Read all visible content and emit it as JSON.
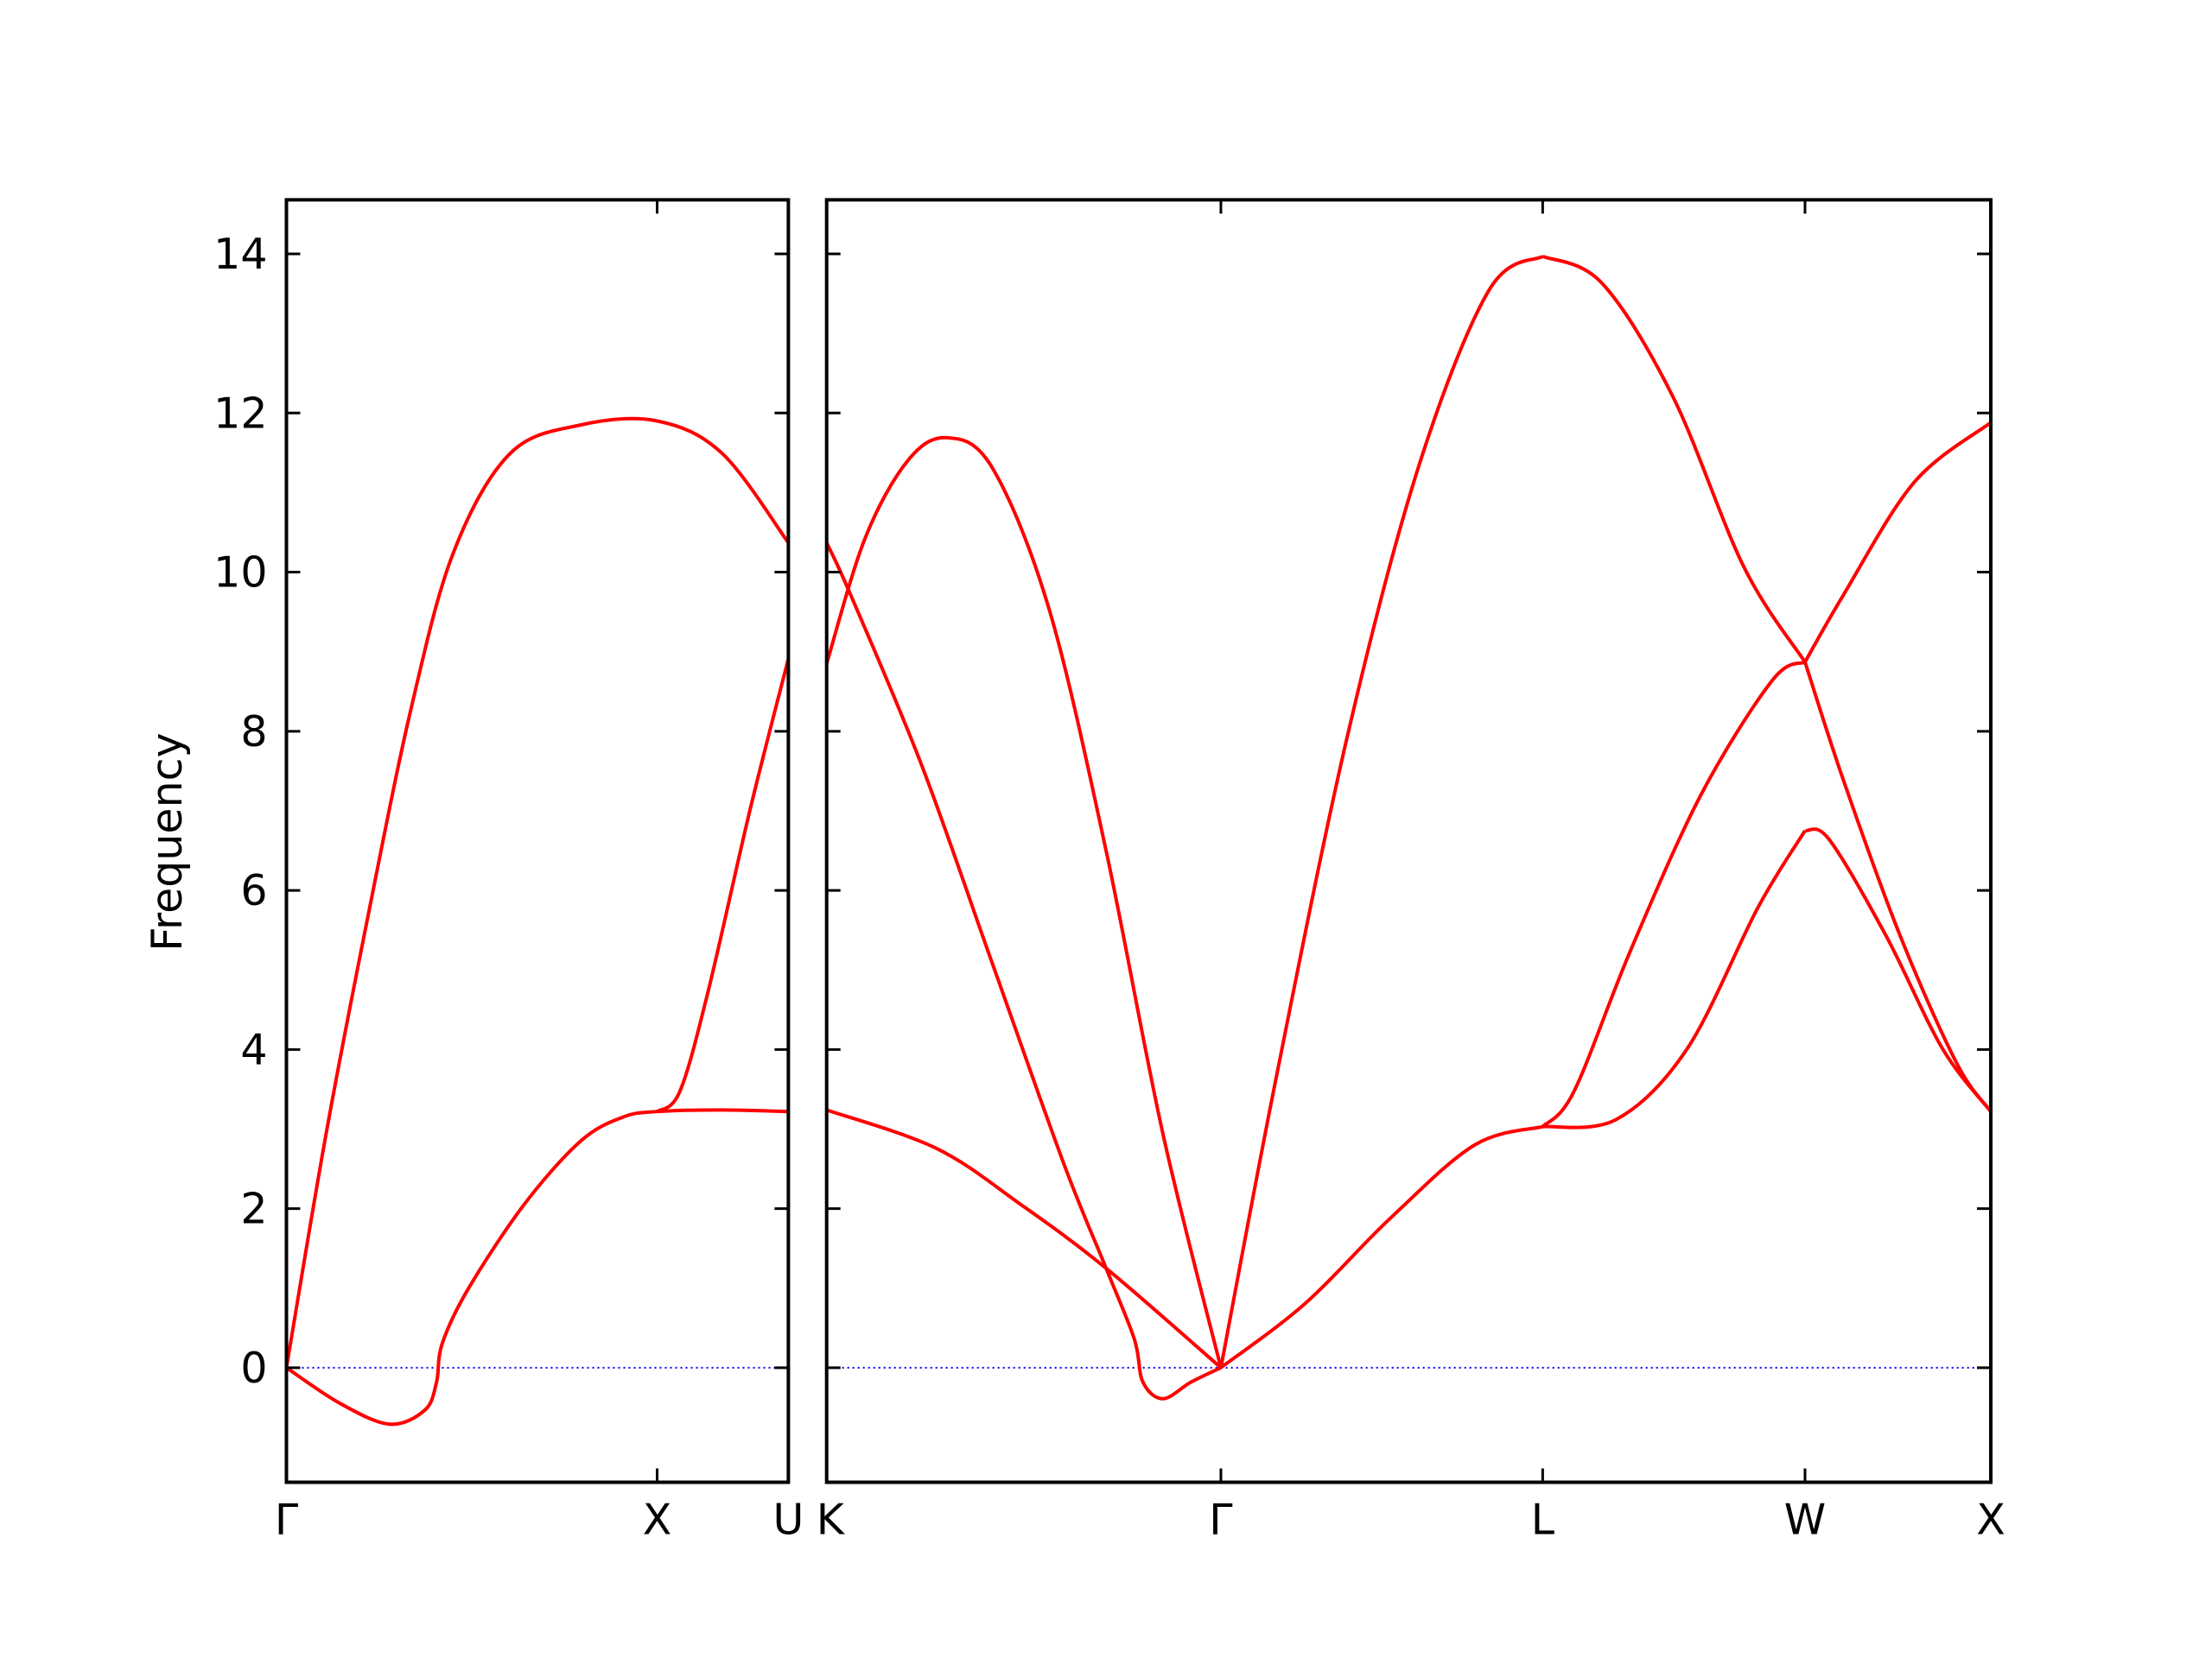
{
  "chart_data": [
    {
      "type": "line",
      "ylabel": "Frequency",
      "xlim": [
        0,
        1.354
      ],
      "ylim": [
        -1.44,
        14.68
      ],
      "xticks": [
        {
          "value": 0,
          "label": "Γ"
        },
        {
          "value": 1,
          "label": "X"
        },
        {
          "value": 1.354,
          "label": "U"
        }
      ],
      "yticks": [
        0,
        2,
        4,
        6,
        8,
        10,
        12,
        14
      ],
      "reference_line": {
        "y": 0,
        "color": "#0000ff"
      },
      "series": [
        {
          "color": "#ff0000",
          "x": [
            0,
            0.145,
            0.279,
            0.374,
            0.405,
            0.42,
            0.489,
            0.641,
            0.794,
            0.908,
            1,
            1.176,
            1.354
          ],
          "values": [
            0,
            -0.45,
            -0.71,
            -0.53,
            -0.18,
            0.3,
            0.98,
            2.05,
            2.85,
            3.15,
            3.22,
            3.24,
            3.22
          ]
        },
        {
          "color": "#ff0000",
          "x": [
            0,
            0.107,
            0.221,
            0.336,
            0.45,
            0.603,
            0.794,
            1,
            1.176,
            1.354
          ],
          "values": [
            0,
            2.94,
            5.7,
            8.28,
            10.24,
            11.49,
            11.85,
            11.9,
            11.49,
            10.37
          ]
        },
        {
          "color": "#ff0000",
          "x": [
            1,
            1.061,
            1.137,
            1.252,
            1.354
          ],
          "values": [
            3.22,
            3.47,
            4.72,
            7.04,
            8.91
          ]
        }
      ]
    },
    {
      "type": "line",
      "xlim": [
        1.354,
        4.487
      ],
      "ylim": [
        -1.44,
        14.68
      ],
      "xticks": [
        {
          "value": 1.354,
          "label": "K"
        },
        {
          "value": 2.415,
          "label": "Γ"
        },
        {
          "value": 3.281,
          "label": "L"
        },
        {
          "value": 3.987,
          "label": "W"
        },
        {
          "value": 4.487,
          "label": "X"
        }
      ],
      "yticks": [
        0,
        2,
        4,
        6,
        8,
        10,
        12,
        14
      ],
      "reference_line": {
        "y": 0,
        "color": "#0000ff"
      },
      "series": [
        {
          "color": "#ff0000",
          "x": [
            1.354,
            1.648,
            1.877,
            2.106,
            2.415
          ],
          "values": [
            3.24,
            2.76,
            2.05,
            1.25,
            0
          ]
        },
        {
          "color": "#ff0000",
          "x": [
            1.354,
            1.419,
            1.61,
            1.8,
            1.991,
            2.106,
            2.182,
            2.205,
            2.259,
            2.335,
            2.415
          ],
          "values": [
            10.37,
            9.71,
            7.57,
            5.08,
            2.58,
            1.25,
            0.36,
            -0.18,
            -0.39,
            -0.18,
            0
          ]
        },
        {
          "color": "#ff0000",
          "x": [
            1.354,
            1.457,
            1.572,
            1.678,
            1.8,
            1.953,
            2.106,
            2.259,
            2.415
          ],
          "values": [
            8.85,
            10.42,
            11.4,
            11.69,
            11.31,
            9.53,
            6.5,
            2.94,
            0
          ]
        },
        {
          "color": "#ff0000",
          "x": [
            2.415,
            2.564,
            2.755,
            2.946,
            3.136,
            3.281
          ],
          "values": [
            0,
            3.65,
            7.93,
            11.31,
            13.54,
            13.97
          ]
        },
        {
          "color": "#ff0000",
          "x": [
            2.415,
            2.64,
            2.869,
            3.098,
            3.281
          ],
          "values": [
            0,
            0.8,
            1.87,
            2.8,
            3.03
          ]
        },
        {
          "color": "#ff0000",
          "x": [
            3.281,
            3.441,
            3.632,
            3.823,
            3.987
          ],
          "values": [
            13.97,
            13.63,
            12.2,
            10.06,
            8.87
          ]
        },
        {
          "color": "#ff0000",
          "x": [
            3.281,
            3.365,
            3.518,
            3.708,
            3.899,
            3.987
          ],
          "values": [
            3.03,
            3.47,
            5.25,
            7.21,
            8.64,
            8.87
          ]
        },
        {
          "color": "#ff0000",
          "x": [
            3.281,
            3.479,
            3.67,
            3.861,
            3.987
          ],
          "values": [
            3.03,
            3.12,
            4.01,
            5.79,
            6.75
          ]
        },
        {
          "color": "#ff0000",
          "x": [
            3.987,
            4.09,
            4.281,
            4.487
          ],
          "values": [
            8.87,
            9.71,
            11.13,
            11.88
          ]
        },
        {
          "color": "#ff0000",
          "x": [
            3.987,
            4.09,
            4.243,
            4.395,
            4.487
          ],
          "values": [
            8.87,
            7.39,
            5.43,
            3.83,
            3.22
          ]
        },
        {
          "color": "#ff0000",
          "x": [
            3.987,
            4.052,
            4.205,
            4.357,
            4.487
          ],
          "values": [
            6.75,
            6.64,
            5.43,
            4.01,
            3.22
          ]
        }
      ]
    }
  ]
}
